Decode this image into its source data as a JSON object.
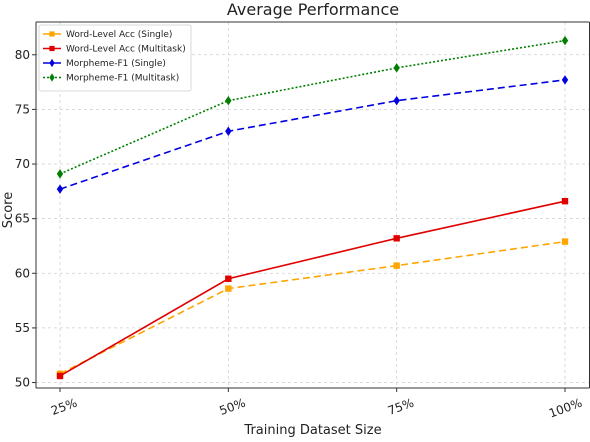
{
  "chart_data": {
    "type": "line",
    "title": "Average Performance",
    "xlabel": "Training Dataset Size",
    "ylabel": "Score",
    "categories": [
      "25%",
      "50%",
      "75%",
      "100%"
    ],
    "ylim": [
      49.5,
      83
    ],
    "yticks": [
      50,
      55,
      60,
      65,
      70,
      75,
      80
    ],
    "grid": true,
    "legend_position": "top-left",
    "series": [
      {
        "name": "Word-Level Acc (Single)",
        "values": [
          50.8,
          58.6,
          60.7,
          62.9
        ],
        "color": "#ffa500",
        "line_style": "dashed",
        "marker": "square"
      },
      {
        "name": "Word-Level Acc (Multitask)",
        "values": [
          50.6,
          59.5,
          63.2,
          66.6
        ],
        "color": "#e00000",
        "line_style": "solid",
        "marker": "square"
      },
      {
        "name": "Morpheme-F1 (Single)",
        "values": [
          67.7,
          73.0,
          75.8,
          77.7
        ],
        "color": "#0000e0",
        "line_style": "dashed",
        "marker": "diamond"
      },
      {
        "name": "Morpheme-F1 (Multitask)",
        "values": [
          69.1,
          75.8,
          78.8,
          81.3
        ],
        "color": "#008000",
        "line_style": "dotted",
        "marker": "diamond"
      }
    ]
  }
}
